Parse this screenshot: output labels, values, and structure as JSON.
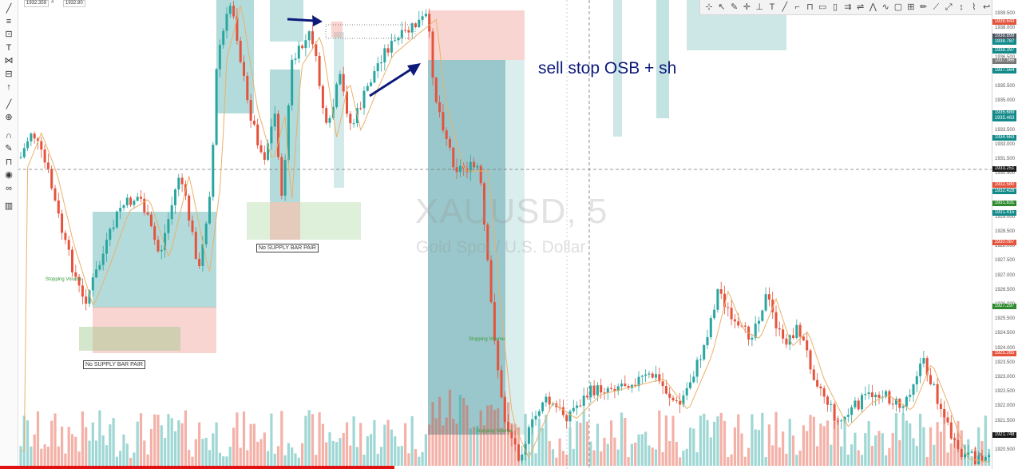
{
  "chart": {
    "symbol_watermark": "XAUUSD, 5",
    "description_watermark": "Gold Spot / U.S. Dollar",
    "annotation": "sell stop OSB + sh",
    "ohlc_tags": [
      "1932.359",
      "1932.80"
    ],
    "interval_tag": "4"
  },
  "box_labels": [
    "No SUPPLY BAR PAIR",
    "No SUPPLY BAR PAIR"
  ],
  "signal_labels": [
    "Stopping Volume",
    "Stopping Volume",
    "Stopping Volume"
  ],
  "price_axis": {
    "ticks": [
      "1939.500",
      "1938.000",
      "1937.500",
      "1936.500",
      "1936.000",
      "1935.500",
      "1935.000",
      "1934.000",
      "1933.500",
      "1933.000",
      "1931.500",
      "1930.500",
      "1930.000",
      "1929.500",
      "1929.000",
      "1928.500",
      "1928.000",
      "1927.500",
      "1927.000",
      "1926.500",
      "1926.000",
      "1925.500",
      "1924.500",
      "1924.000",
      "1923.500",
      "1923.000",
      "1922.500",
      "1922.000",
      "1921.500",
      "1921.000",
      "1920.500"
    ],
    "badges": [
      {
        "text": "1939.643",
        "color": "#e5533d"
      },
      {
        "text": "1938.899",
        "color": "#4b5563"
      },
      {
        "text": "1938.787",
        "color": "#138a8a"
      },
      {
        "text": "1938.397",
        "color": "#138a8a"
      },
      {
        "text": "1937.966",
        "color": "#777777"
      },
      {
        "text": "1937.564",
        "color": "#138a8a"
      },
      {
        "text": "1935.689",
        "color": "#138a8a"
      },
      {
        "text": "1935.463",
        "color": "#138a8a"
      },
      {
        "text": "1934.663",
        "color": "#138a8a"
      },
      {
        "text": "1933.251",
        "color": "#1b1b1b"
      },
      {
        "text": "1932.580",
        "color": "#e5533d"
      },
      {
        "text": "1932.428",
        "color": "#138a8a"
      },
      {
        "text": "1931.831",
        "color": "#2e8b2e"
      },
      {
        "text": "1931.415",
        "color": "#138a8a"
      },
      {
        "text": "1930.087",
        "color": "#e5533d"
      },
      {
        "text": "1927.297",
        "color": "#2e8b2e"
      },
      {
        "text": "1925.265",
        "color": "#e5533d"
      },
      {
        "text": "1921.748",
        "color": "#1b1b1b"
      }
    ]
  },
  "left_tools": [
    "cursor-icon",
    "line-tool-icon",
    "fib-icon",
    "rectangle-icon",
    "text-icon",
    "pattern-icon",
    "measure-icon",
    "arrow-up-icon",
    "ruler-icon",
    "zoom-icon",
    "magnet-icon",
    "pencil-icon",
    "lock-icon",
    "eye-icon",
    "link-icon",
    "trash-icon"
  ],
  "draw_tools": [
    "⊹",
    "↖",
    "✎",
    "✛",
    "⊥",
    "T",
    "╱",
    "⌐",
    "⊓",
    "▭",
    "▯",
    "⇉",
    "⇌",
    "⋀",
    "∿",
    "▢",
    "⊞",
    "✏",
    "⟋",
    "⤢",
    "↕",
    "⌇",
    "↩",
    "⊣"
  ]
}
